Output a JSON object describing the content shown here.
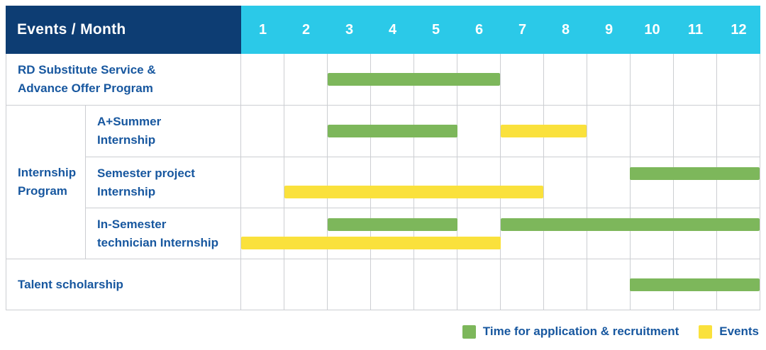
{
  "header": {
    "title": "Events / Month",
    "months": [
      "1",
      "2",
      "3",
      "4",
      "5",
      "6",
      "7",
      "8",
      "9",
      "10",
      "11",
      "12"
    ]
  },
  "colors": {
    "header_bg": "#0d3d73",
    "months_bg": "#2bc9e8",
    "label_text": "#17579f",
    "green": "#7db75b",
    "yellow": "#fae13c",
    "grid": "#ccced2"
  },
  "sections": [
    {
      "type": "row",
      "label": [
        "RD Substitute Service &",
        "Advance Offer Program"
      ],
      "lines": [
        [
          {
            "color": "green",
            "start": 3,
            "end": 6
          }
        ]
      ]
    },
    {
      "type": "group",
      "label": [
        "Internship",
        "Program"
      ],
      "rows": [
        {
          "label": [
            "A+Summer",
            "Internship"
          ],
          "lines": [
            [
              {
                "color": "green",
                "start": 3,
                "end": 5
              },
              {
                "color": "yellow",
                "start": 7,
                "end": 8
              }
            ]
          ]
        },
        {
          "label": [
            "Semester project",
            "Internship"
          ],
          "lines": [
            [
              {
                "color": "green",
                "start": 10,
                "end": 12
              }
            ],
            [
              {
                "color": "yellow",
                "start": 2,
                "end": 7
              }
            ]
          ]
        },
        {
          "label": [
            "In-Semester",
            "technician Internship"
          ],
          "lines": [
            [
              {
                "color": "green",
                "start": 3,
                "end": 5
              },
              {
                "color": "green",
                "start": 7,
                "end": 12
              }
            ],
            [
              {
                "color": "yellow",
                "start": 1,
                "end": 6
              }
            ]
          ]
        }
      ]
    },
    {
      "type": "row",
      "label": [
        "Talent scholarship"
      ],
      "lines": [
        [
          {
            "color": "green",
            "start": 10,
            "end": 12
          }
        ]
      ]
    }
  ],
  "legend": [
    {
      "color": "green",
      "label": "Time for application & recruitment"
    },
    {
      "color": "yellow",
      "label": "Events"
    }
  ],
  "chart_data": {
    "type": "table",
    "subtype": "gantt",
    "title": "Events / Month",
    "x": {
      "label": "Month",
      "ticks": [
        1,
        2,
        3,
        4,
        5,
        6,
        7,
        8,
        9,
        10,
        11,
        12
      ]
    },
    "series_legend": [
      "Time for application & recruitment",
      "Events"
    ],
    "tasks": [
      {
        "event": "RD Substitute Service & Advance Offer Program",
        "group": "",
        "application_recruitment_months": [
          [
            3,
            6
          ]
        ],
        "events_months": []
      },
      {
        "event": "A+Summer Internship",
        "group": "Internship Program",
        "application_recruitment_months": [
          [
            3,
            5
          ]
        ],
        "events_months": [
          [
            7,
            8
          ]
        ]
      },
      {
        "event": "Semester project Internship",
        "group": "Internship Program",
        "application_recruitment_months": [
          [
            10,
            12
          ]
        ],
        "events_months": [
          [
            2,
            7
          ]
        ]
      },
      {
        "event": "In-Semester technician Internship",
        "group": "Internship Program",
        "application_recruitment_months": [
          [
            3,
            5
          ],
          [
            7,
            12
          ]
        ],
        "events_months": [
          [
            1,
            6
          ]
        ]
      },
      {
        "event": "Talent scholarship",
        "group": "",
        "application_recruitment_months": [
          [
            10,
            12
          ]
        ],
        "events_months": []
      }
    ]
  }
}
